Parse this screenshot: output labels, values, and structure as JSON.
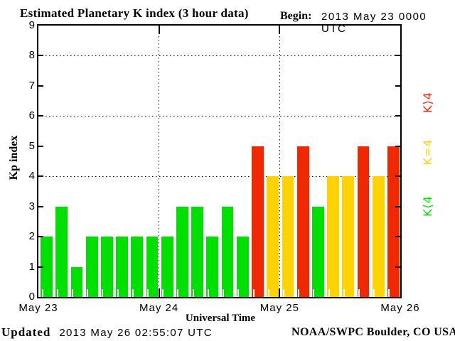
{
  "header": {
    "title": "Estimated Planetary K index (3 hour data)",
    "begin_label": "Begin:",
    "begin_value": "2013 May 23 0000 UTC"
  },
  "footer": {
    "updated_label": "Updated",
    "updated_value": "2013 May 26 02:55:07 UTC",
    "source": "NOAA/SWPC Boulder, CO USA"
  },
  "chart_data": {
    "type": "bar",
    "title": "Estimated Planetary K index (3 hour data)",
    "begin": "2013 May 23 0000 UTC",
    "xlabel": "Universal Time",
    "ylabel": "Kp index",
    "ylim": [
      0,
      9
    ],
    "yticks": [
      0,
      1,
      2,
      3,
      4,
      5,
      6,
      7,
      8,
      9
    ],
    "y_dotted_gridlines": [
      4,
      6,
      8
    ],
    "x_day_labels": [
      "May 23",
      "May 24",
      "May 25",
      "May 26"
    ],
    "x_dotted_gridlines_at_day_starts": [
      "May 24",
      "May 25"
    ],
    "hours_per_bar": 3,
    "bars_per_day": 8,
    "values": [
      2,
      3,
      1,
      2,
      2,
      2,
      2,
      2,
      2,
      3,
      3,
      2,
      3,
      2,
      5,
      4,
      4,
      5,
      3,
      4,
      4,
      5,
      4,
      5
    ],
    "colors": {
      "k_lt_4": "#00E000",
      "k_eq_4": "#FFD300",
      "k_gt_4": "#F02800"
    },
    "legend": [
      {
        "label": "K⟩4",
        "color": "#F02800",
        "meaning": "K>4"
      },
      {
        "label": "K=4",
        "color": "#FFD300",
        "meaning": "K=4"
      },
      {
        "label": "K⟨4",
        "color": "#00E000",
        "meaning": "K<4"
      }
    ],
    "legend_position": "right"
  }
}
